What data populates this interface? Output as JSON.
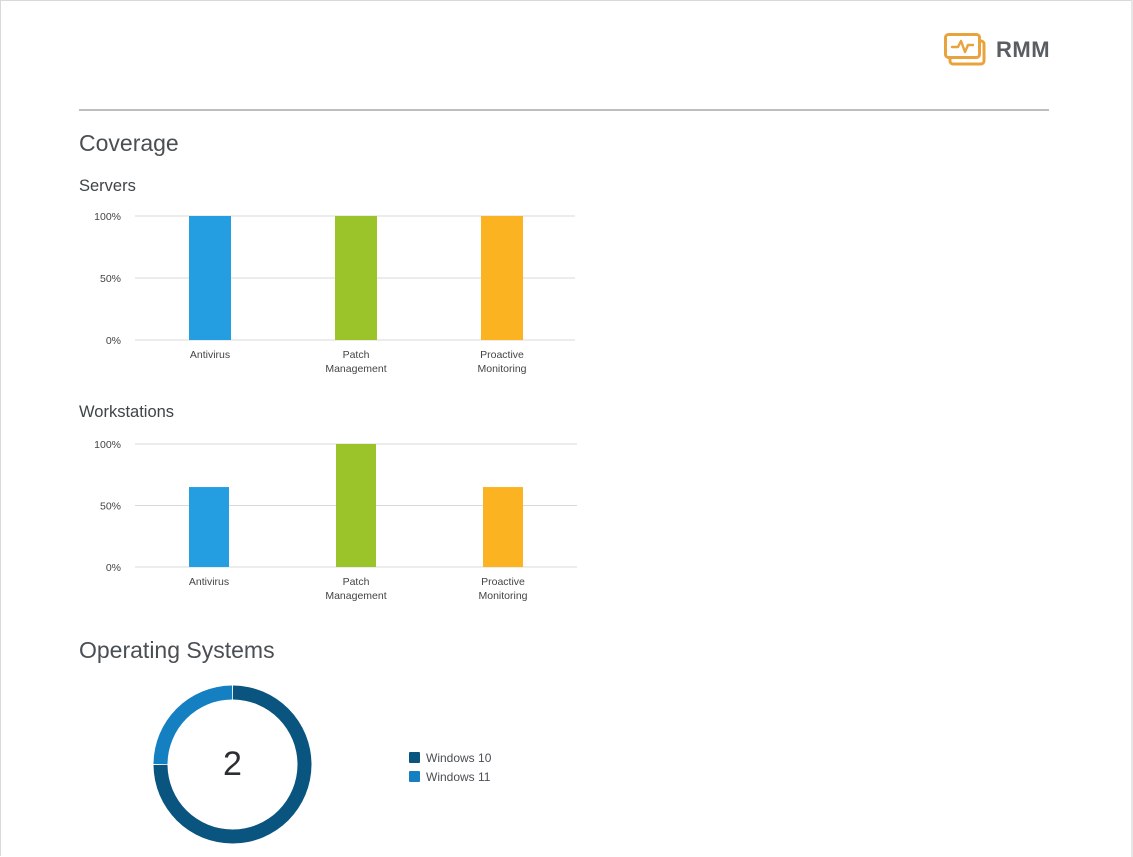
{
  "brand": {
    "name": "RMM",
    "color": "#e8a33d"
  },
  "sections": {
    "coverage_title": "Coverage",
    "servers_title": "Servers",
    "workstations_title": "Workstations",
    "os_title": "Operating Systems"
  },
  "colors": {
    "antivirus": "#249ee0",
    "patch": "#9bc32a",
    "monitoring": "#fbb321",
    "win10": "#0a5580",
    "win11": "#147fc1",
    "grid": "#d9d9d9"
  },
  "chart_data": [
    {
      "type": "bar",
      "name": "servers",
      "categories": [
        [
          "Antivirus"
        ],
        [
          "Patch",
          "Management"
        ],
        [
          "Proactive",
          "Monitoring"
        ]
      ],
      "values": [
        100,
        100,
        100
      ],
      "ylim": [
        0,
        100
      ],
      "yticks": [
        "0%",
        "50%",
        "100%"
      ]
    },
    {
      "type": "bar",
      "name": "workstations",
      "categories": [
        [
          "Antivirus"
        ],
        [
          "Patch",
          "Management"
        ],
        [
          "Proactive",
          "Monitoring"
        ]
      ],
      "values": [
        65,
        100,
        65
      ],
      "ylim": [
        0,
        100
      ],
      "yticks": [
        "0%",
        "50%",
        "100%"
      ]
    },
    {
      "type": "pie",
      "name": "operating-systems",
      "center_label": "2",
      "series": [
        {
          "name": "Windows 10",
          "value": 75
        },
        {
          "name": "Windows 11",
          "value": 25
        }
      ]
    }
  ]
}
